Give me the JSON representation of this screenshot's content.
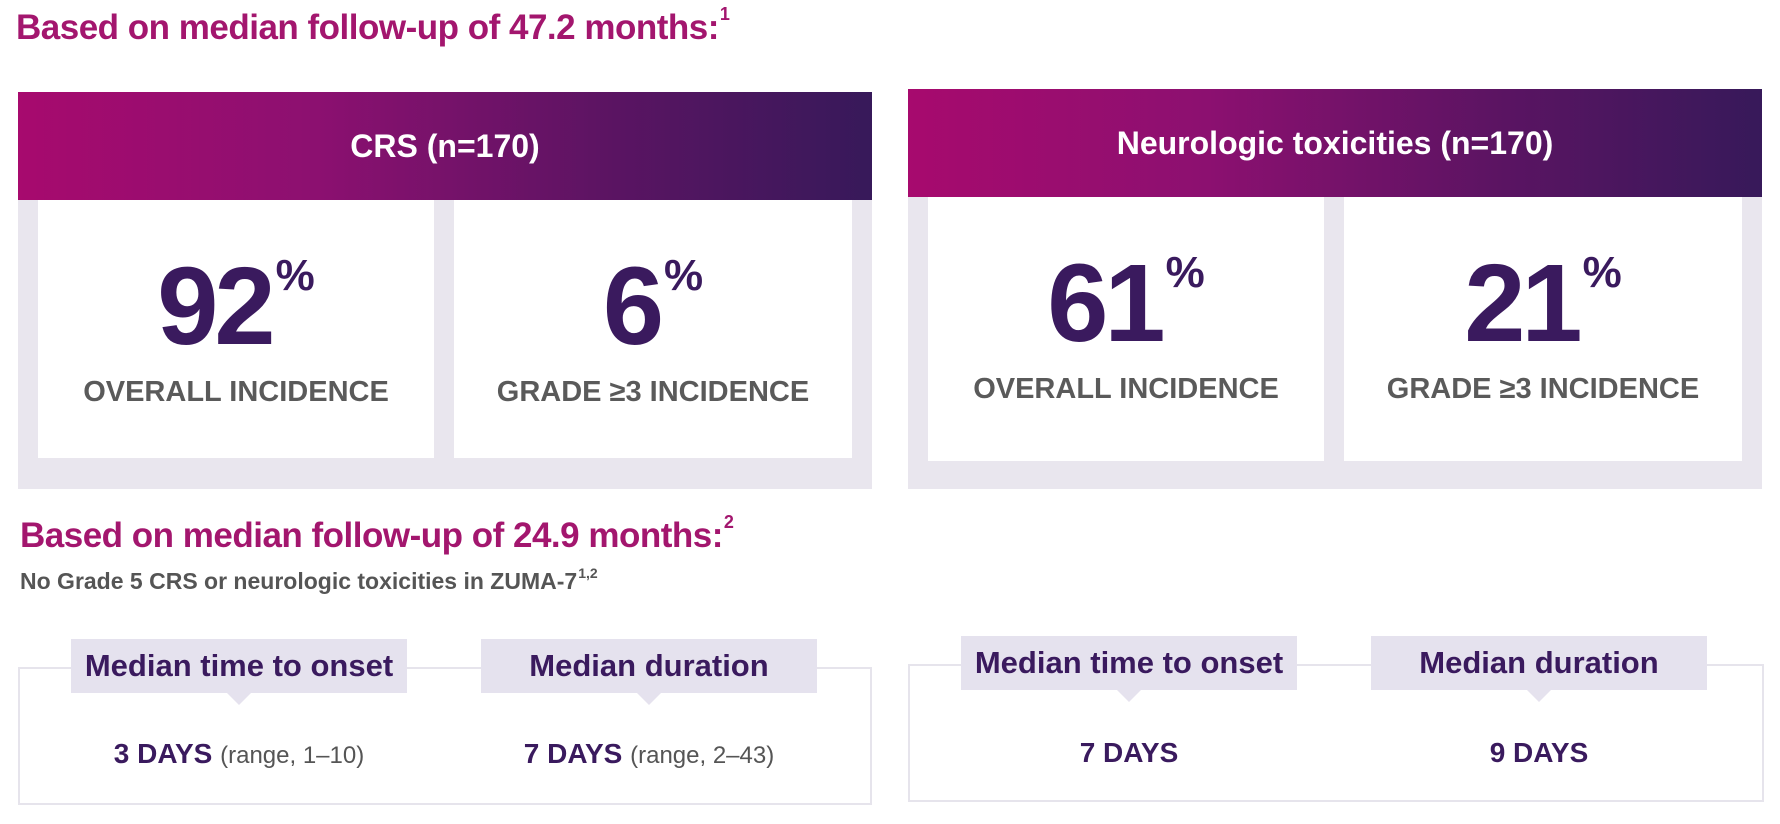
{
  "heading1": {
    "text": "Based on median follow-up of 47.2 months:",
    "ref": "1"
  },
  "heading2": {
    "text": "Based on median follow-up of 24.9 months:",
    "ref": "2"
  },
  "note": {
    "text": "No Grade 5 CRS or neurologic toxicities in ZUMA-7",
    "ref": "1,2"
  },
  "crs": {
    "title": "CRS (n=170)",
    "overall": {
      "value": "92",
      "unit": "%",
      "label": "OVERALL INCIDENCE"
    },
    "grade3": {
      "value": "6",
      "unit": "%",
      "label": "GRADE ≥3 INCIDENCE"
    },
    "onset": {
      "label": "Median time to onset",
      "value": "3 DAYS",
      "range": "(range, 1–10)"
    },
    "duration": {
      "label": "Median duration",
      "value": "7 DAYS",
      "range": "(range, 2–43)"
    }
  },
  "neuro": {
    "title": "Neurologic toxicities (n=170)",
    "overall": {
      "value": "61",
      "unit": "%",
      "label": "OVERALL INCIDENCE"
    },
    "grade3": {
      "value": "21",
      "unit": "%",
      "label": "GRADE ≥3 INCIDENCE"
    },
    "onset": {
      "label": "Median time to onset",
      "value": "7 DAYS"
    },
    "duration": {
      "label": "Median duration",
      "value": "9 DAYS"
    }
  },
  "colors": {
    "magenta": "#a3166e",
    "purple": "#3a1a5e",
    "lavender": "#e5e2ee",
    "gray_text": "#5a5a5a"
  }
}
